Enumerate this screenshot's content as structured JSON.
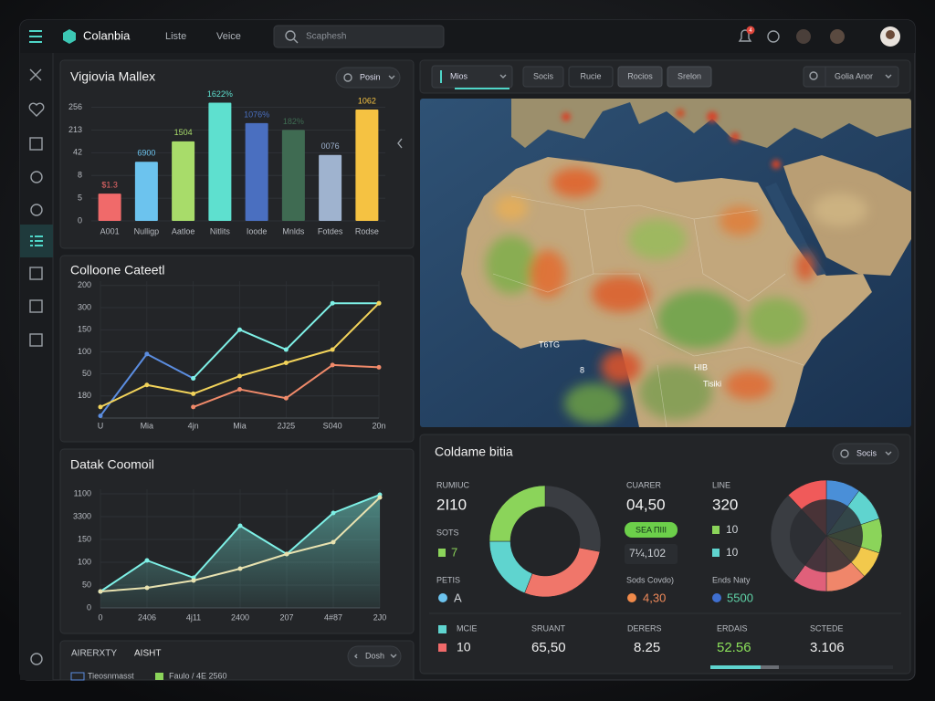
{
  "window": {
    "brand": "Colanbia",
    "nav": [
      "Liste",
      "Veice"
    ],
    "search": "Scaphesh",
    "badge": "4"
  },
  "bar_panel": {
    "title": "Vigiovia Mallex",
    "dropdown": "Posin",
    "chart": {
      "type": "bar",
      "categories": [
        "A001",
        "Nulligp",
        "Aatloe",
        "Nitlits",
        "Ioode",
        "Mnlds",
        "Fotdes",
        "Rodse"
      ],
      "values": [
        1.2,
        2.6,
        3.5,
        5.2,
        4.3,
        4.0,
        2.9,
        4.9
      ],
      "annotations": [
        "$1.3",
        "6900",
        "1504",
        "1622%",
        "1076%",
        "182%",
        "0076",
        "1062"
      ],
      "colors": [
        "#f06a6a",
        "#6cc3ee",
        "#a8dc6a",
        "#5ee0cf",
        "#4a6fc0",
        "#3f6b52",
        "#9fb3cf",
        "#f5c242"
      ],
      "ylim": [
        0,
        5.3
      ],
      "yticks": [
        0,
        {
          "value": 1,
          "label": "5"
        },
        {
          "value": 2,
          "label": "8"
        },
        {
          "value": 3,
          "label": "42"
        },
        {
          "value": 4,
          "label": "213"
        },
        {
          "value": 5,
          "label": "256"
        }
      ],
      "grid": true
    }
  },
  "line_panel": {
    "title": "Colloone Cateetl",
    "chart": {
      "type": "line",
      "categories": [
        "U",
        "Mia",
        "4jn",
        "Mia",
        "2J25",
        "S040",
        "20n"
      ],
      "series": [
        {
          "color": "#5b8de0",
          "values": [
            0.1,
            2.9,
            1.8,
            null,
            null,
            null,
            null
          ]
        },
        {
          "color": "#7ef0e6",
          "values": [
            null,
            null,
            1.8,
            4.0,
            3.1,
            5.2,
            5.2
          ]
        },
        {
          "color": "#f2d35a",
          "values": [
            0.5,
            1.5,
            1.1,
            1.9,
            2.5,
            3.1,
            5.2
          ]
        },
        {
          "color": "#f08a6a",
          "values": [
            null,
            null,
            0.5,
            1.3,
            0.9,
            2.4,
            2.3
          ]
        }
      ],
      "ylim": [
        0,
        6.2
      ],
      "yticks": [
        {
          "value": 1,
          "label": "180"
        },
        {
          "value": 2,
          "label": "50"
        },
        {
          "value": 3,
          "label": "100"
        },
        {
          "value": 4,
          "label": "150"
        },
        {
          "value": 5,
          "label": "300"
        },
        {
          "value": 6,
          "label": "200"
        }
      ],
      "grid": true
    }
  },
  "area_panel": {
    "title": "Datak Coomoil",
    "chart": {
      "type": "area",
      "categories": [
        "0",
        "2406",
        "4j11",
        "2400",
        "207",
        "4#87",
        "2J0"
      ],
      "series": [
        {
          "color": "#7ef0e6",
          "values": [
            0.72,
            2.08,
            1.32,
            3.6,
            2.36,
            4.16,
            4.96
          ]
        },
        {
          "color": "#e8e2b0",
          "values": [
            0.72,
            0.88,
            1.2,
            1.72,
            2.36,
            2.88,
            4.84
          ]
        }
      ],
      "ylim": [
        0,
        5.2
      ],
      "yticks": [
        0,
        {
          "value": 1,
          "label": "50"
        },
        {
          "value": 2,
          "label": "100"
        },
        {
          "value": 3,
          "label": "150"
        },
        {
          "value": 4,
          "label": "3300"
        },
        {
          "value": 5,
          "label": "1100"
        }
      ],
      "grid": true
    }
  },
  "small_panel": {
    "title": "AIRERXTY",
    "tab": "AISHT",
    "button": "Dosh",
    "row": [
      "Tieosnmasst",
      "Faulo / 4E 2560"
    ]
  },
  "map_toolbar": {
    "dropdown": "Mios",
    "buttons": [
      "Socis",
      "Rucie",
      "Rocios",
      "Srelon"
    ],
    "search": "Golia Anor"
  },
  "map": {
    "labels": [
      "T6TG",
      "HIB",
      "Tisiki",
      "8"
    ]
  },
  "summary": {
    "title": "Coldame bitia",
    "dropdown": "Socis",
    "col_1": {
      "label": "RUMIUC",
      "value": "2I10",
      "sub_1": "SOTS",
      "sub_1_value": "7",
      "sub_2": "PETIS",
      "sub_2_value": "A"
    },
    "col_2": {
      "label": "CUARER",
      "value": "04,50",
      "badge": "SEA ПIII",
      "box": "7¼,102",
      "sub": "Sods Covdo)",
      "sub_value": "4,30"
    },
    "col_3": {
      "label": "LINE",
      "value": "320",
      "item_1": "10",
      "item_2": "10",
      "sub": "Ends Naty",
      "sub_value": "5500"
    },
    "donut_1": {
      "type": "pie",
      "values": [
        28,
        28,
        19,
        25
      ],
      "colors": [
        "#3a3d42",
        "#f0766a",
        "#5fd4cf",
        "#8bd45a"
      ]
    },
    "donut_2": {
      "type": "pie",
      "values": [
        10,
        10,
        10,
        8,
        12,
        10,
        28,
        12
      ],
      "colors": [
        "#4a8fd8",
        "#5fd4cf",
        "#8bd45a",
        "#f2c94c",
        "#f0866a",
        "#e0607a",
        "#3a3d42",
        "#f05a5a"
      ]
    },
    "bottom": {
      "legend_1": "MCIE",
      "legend_2": "10",
      "items": [
        {
          "label": "SRUANT",
          "value": "65,50"
        },
        {
          "label": "DERERS",
          "value": "8.25"
        },
        {
          "label": "ERDAIS",
          "value": "52.56"
        },
        {
          "label": "SCTEDE",
          "value": "3.106"
        }
      ]
    }
  }
}
